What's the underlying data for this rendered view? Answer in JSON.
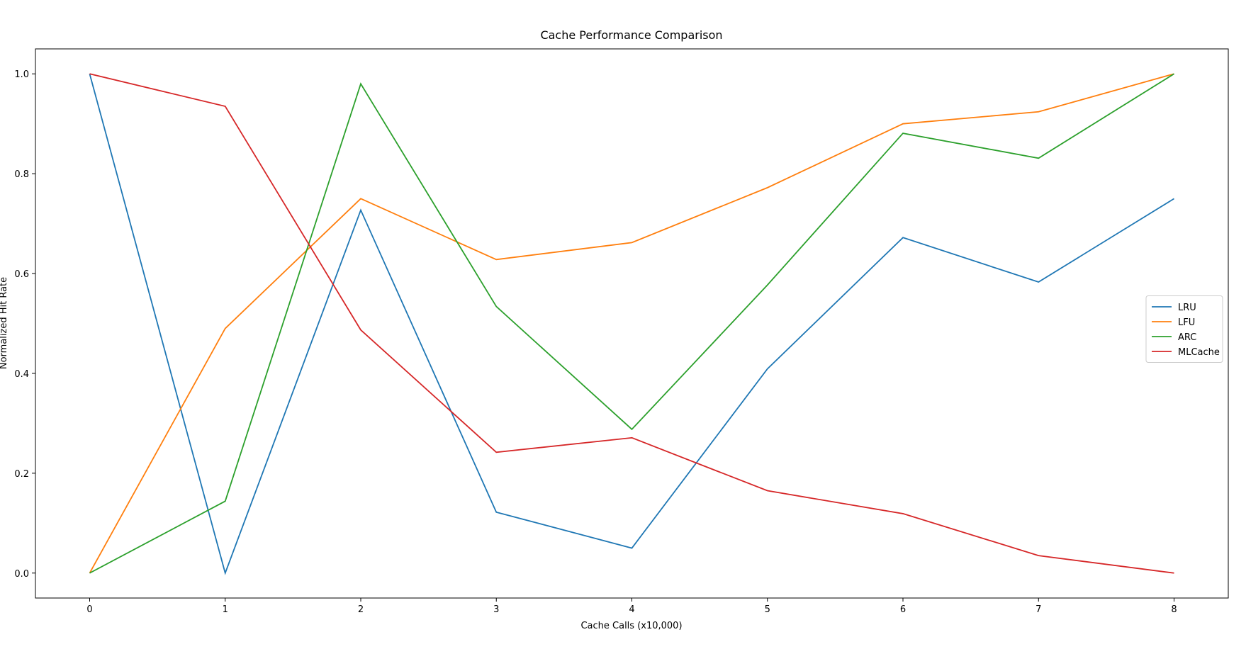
{
  "chart_data": {
    "type": "line",
    "title": "Cache Performance Comparison",
    "xlabel": "Cache Calls (x10,000)",
    "ylabel": "Normalized Hit Rate",
    "x": [
      0,
      1,
      2,
      3,
      4,
      5,
      6,
      7,
      8
    ],
    "xlim": [
      -0.4,
      8.4
    ],
    "ylim": [
      -0.05,
      1.05
    ],
    "xticks": [
      0,
      1,
      2,
      3,
      4,
      5,
      6,
      7,
      8
    ],
    "yticks": [
      0.0,
      0.2,
      0.4,
      0.6,
      0.8,
      1.0
    ],
    "ytick_labels": [
      "0.0",
      "0.2",
      "0.4",
      "0.6",
      "0.8",
      "1.0"
    ],
    "grid": false,
    "legend_position": "center-right",
    "series": [
      {
        "name": "LRU",
        "color": "#1f77b4",
        "values": [
          1.0,
          0.0,
          0.727,
          0.122,
          0.05,
          0.409,
          0.672,
          0.583,
          0.75
        ]
      },
      {
        "name": "LFU",
        "color": "#ff7f0e",
        "values": [
          0.0,
          0.49,
          0.75,
          0.628,
          0.662,
          0.772,
          0.9,
          0.924,
          1.0
        ]
      },
      {
        "name": "ARC",
        "color": "#2ca02c",
        "values": [
          0.0,
          0.144,
          0.98,
          0.534,
          0.288,
          0.577,
          0.881,
          0.831,
          1.0
        ]
      },
      {
        "name": "MLCache",
        "color": "#d62728",
        "values": [
          1.0,
          0.935,
          0.487,
          0.242,
          0.271,
          0.165,
          0.119,
          0.035,
          0.0
        ]
      }
    ]
  }
}
